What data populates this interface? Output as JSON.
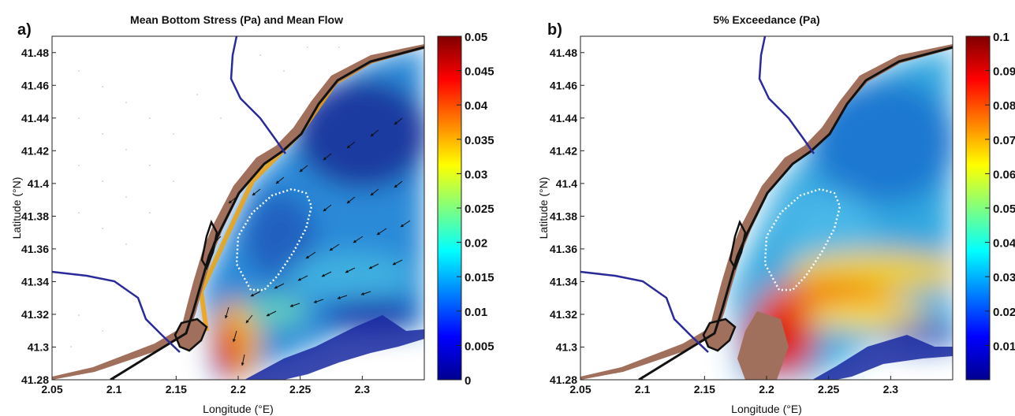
{
  "chart_data": [
    {
      "type": "heatmap",
      "panel_letter": "a)",
      "title": "Mean  Bottom Stress (Pa) and Mean Flow",
      "xlabel": "Longitude (°E)",
      "ylabel": "Latitude (°N)",
      "xlim": [
        2.05,
        2.35
      ],
      "ylim": [
        41.28,
        41.49
      ],
      "x_ticks": [
        2.05,
        2.1,
        2.15,
        2.2,
        2.25,
        2.3
      ],
      "x_tick_labels": [
        "2.05",
        "2.1",
        "2.15",
        "2.2",
        "2.25",
        "2.3"
      ],
      "y_ticks": [
        41.28,
        41.3,
        41.32,
        41.34,
        41.36,
        41.38,
        41.4,
        41.42,
        41.44,
        41.46,
        41.48
      ],
      "y_tick_labels": [
        "41.28",
        "41.3",
        "41.32",
        "41.34",
        "41.36",
        "41.38",
        "41.4",
        "41.42",
        "41.44",
        "41.46",
        "41.48"
      ],
      "colorbar": {
        "min": 0,
        "max": 0.05,
        "ticks": [
          0,
          0.005,
          0.01,
          0.015,
          0.02,
          0.025,
          0.03,
          0.035,
          0.04,
          0.045,
          0.05
        ],
        "tick_labels": [
          "0",
          "0.005",
          "0.01",
          "0.015",
          "0.02",
          "0.025",
          "0.03",
          "0.035",
          "0.04",
          "0.045",
          "0.05"
        ],
        "colormap": "jet"
      },
      "has_flow_vectors": true,
      "land_color": "#a0705c"
    },
    {
      "type": "heatmap",
      "panel_letter": "b)",
      "title": "5% Exceedance (Pa)",
      "xlabel": "Longitude (°E)",
      "ylabel": "Latitude (°N)",
      "xlim": [
        2.05,
        2.35
      ],
      "ylim": [
        41.28,
        41.49
      ],
      "x_ticks": [
        2.05,
        2.1,
        2.15,
        2.2,
        2.25,
        2.3
      ],
      "x_tick_labels": [
        "2.05",
        "2.1",
        "2.15",
        "2.2",
        "2.25",
        "2.3"
      ],
      "y_ticks": [
        41.28,
        41.3,
        41.32,
        41.34,
        41.36,
        41.38,
        41.4,
        41.42,
        41.44,
        41.46,
        41.48
      ],
      "y_tick_labels": [
        "41.28",
        "41.3",
        "41.32",
        "41.34",
        "41.36",
        "41.38",
        "41.4",
        "41.42",
        "41.44",
        "41.46",
        "41.48"
      ],
      "colorbar": {
        "min": 0,
        "max": 0.1,
        "ticks": [
          0.01,
          0.02,
          0.03,
          0.04,
          0.05,
          0.06,
          0.07,
          0.08,
          0.09,
          0.1
        ],
        "tick_labels": [
          "0.01",
          "0.02",
          "0.03",
          "0.04",
          "0.05",
          "0.06",
          "0.07",
          "0.08",
          "0.09",
          "0.1"
        ],
        "colormap": "jet"
      },
      "has_flow_vectors": false,
      "land_color": "#a0705c"
    }
  ]
}
